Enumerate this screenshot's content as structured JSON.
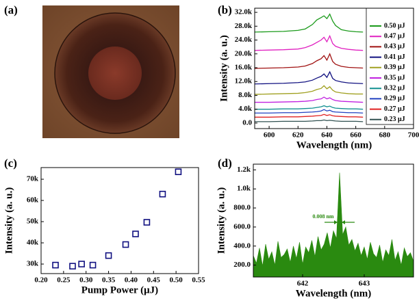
{
  "image_panel": {
    "label": "(a)"
  },
  "chart_data": [
    {
      "type": "line",
      "label": "(b)",
      "xlabel": "Wavelength (nm)",
      "ylabel": "Intensity (a. u.)",
      "x": [
        590,
        600,
        610,
        620,
        625,
        630,
        633,
        636,
        638,
        640,
        642,
        644,
        646,
        650,
        655,
        660,
        665
      ],
      "series": [
        {
          "name": "0.50 μJ",
          "color": "#1a9a1a",
          "values": [
            26300,
            26400,
            26500,
            26800,
            27200,
            28500,
            29800,
            30500,
            31000,
            30200,
            31500,
            29500,
            28200,
            27000,
            26600,
            26400,
            26300
          ]
        },
        {
          "name": "0.47 μJ",
          "color": "#e020c0",
          "values": [
            21000,
            21100,
            21200,
            21400,
            21800,
            22600,
            23300,
            24000,
            24800,
            23500,
            25200,
            23000,
            22200,
            21600,
            21300,
            21100,
            21000
          ]
        },
        {
          "name": "0.43 μJ",
          "color": "#a01010",
          "values": [
            15800,
            15900,
            16000,
            16200,
            16500,
            17200,
            18000,
            18600,
            19500,
            18200,
            20000,
            17800,
            17000,
            16400,
            16100,
            16000,
            15900
          ]
        },
        {
          "name": "0.41 μJ",
          "color": "#101080",
          "values": [
            11300,
            11400,
            11500,
            11700,
            11900,
            12400,
            13000,
            13500,
            14200,
            13200,
            14800,
            12900,
            12300,
            11900,
            11600,
            11500,
            11400
          ]
        },
        {
          "name": "0.39 μJ",
          "color": "#a0a020",
          "values": [
            8300,
            8400,
            8500,
            8600,
            8800,
            9200,
            9700,
            10000,
            10800,
            9900,
            10500,
            9500,
            9000,
            8700,
            8500,
            8400,
            8400
          ]
        },
        {
          "name": "0.35 μJ",
          "color": "#c020e0",
          "values": [
            6000,
            6000,
            6100,
            6200,
            6300,
            6500,
            6800,
            7000,
            7500,
            7000,
            7300,
            6800,
            6500,
            6300,
            6200,
            6100,
            6000
          ]
        },
        {
          "name": "0.32 μJ",
          "color": "#109090",
          "values": [
            4000,
            4000,
            4100,
            4100,
            4200,
            4300,
            4500,
            4700,
            5000,
            4700,
            4900,
            4500,
            4300,
            4200,
            4100,
            4100,
            4000
          ]
        },
        {
          "name": "0.29 μJ",
          "color": "#2040c0",
          "values": [
            2900,
            2900,
            3000,
            3000,
            3100,
            3200,
            3300,
            3500,
            3900,
            3500,
            3700,
            3300,
            3200,
            3100,
            3000,
            3000,
            2900
          ]
        },
        {
          "name": "0.27 μJ",
          "color": "#e02020",
          "values": [
            1700,
            1700,
            1800,
            1800,
            1900,
            2000,
            2100,
            2200,
            2500,
            2200,
            2400,
            2100,
            2000,
            1900,
            1800,
            1800,
            1700
          ]
        },
        {
          "name": "0.23 μJ",
          "color": "#305050",
          "values": [
            400,
            400,
            500,
            500,
            500,
            600,
            700,
            700,
            900,
            700,
            800,
            700,
            600,
            500,
            500,
            500,
            400
          ]
        }
      ],
      "xlim": [
        590,
        700
      ],
      "xticks": [
        600,
        620,
        640,
        660,
        680,
        700
      ],
      "ylim": [
        -1600,
        33200
      ],
      "yticks": [
        {
          "value": 0,
          "label": "0.0"
        },
        {
          "value": 4000,
          "label": "4.0k"
        },
        {
          "value": 8000,
          "label": "8.0k"
        },
        {
          "value": 12000,
          "label": "12.0k"
        },
        {
          "value": 16000,
          "label": "16.0k"
        },
        {
          "value": 20000,
          "label": "20.0k"
        },
        {
          "value": 24000,
          "label": "24.0k"
        },
        {
          "value": 28000,
          "label": "28.0k"
        },
        {
          "value": 32000,
          "label": "32.0k"
        }
      ]
    },
    {
      "type": "scatter",
      "label": "(c)",
      "xlabel": "Pump Power (μJ)",
      "ylabel": "Intensity (a. u.)",
      "color": "#101080",
      "x": [
        0.232,
        0.27,
        0.29,
        0.315,
        0.35,
        0.388,
        0.41,
        0.435,
        0.47,
        0.505
      ],
      "values": [
        29500,
        29000,
        30000,
        29500,
        34000,
        39200,
        44200,
        49700,
        63000,
        73500
      ],
      "xlim": [
        0.2,
        0.55
      ],
      "xticks": [
        {
          "value": 0.2,
          "label": "0.20"
        },
        0.25,
        {
          "value": 0.3,
          "label": "0.30"
        },
        0.35,
        {
          "value": 0.4,
          "label": "0.40"
        },
        0.45,
        {
          "value": 0.5,
          "label": "0.50"
        },
        0.55
      ],
      "ylim": [
        25500,
        75500
      ],
      "yticks": [
        {
          "value": 30000,
          "label": "30k"
        },
        {
          "value": 40000,
          "label": "40k"
        },
        {
          "value": 50000,
          "label": "50k"
        },
        {
          "value": 60000,
          "label": "60k"
        },
        {
          "value": 70000,
          "label": "70k"
        }
      ]
    },
    {
      "type": "area",
      "label": "(d)",
      "xlabel": "Wavelength (nm)",
      "ylabel": "Intensity (a. u.)",
      "color": "#2a8a10",
      "annotation": "0.008 nm",
      "x": [
        641.2,
        641.25,
        641.3,
        641.35,
        641.4,
        641.45,
        641.5,
        641.55,
        641.6,
        641.65,
        641.7,
        641.75,
        641.8,
        641.85,
        641.9,
        641.95,
        642,
        642.05,
        642.1,
        642.15,
        642.2,
        642.25,
        642.3,
        642.35,
        642.4,
        642.45,
        642.5,
        642.55,
        642.6,
        642.65,
        642.7,
        642.75,
        642.8,
        642.85,
        642.9,
        642.95,
        643,
        643.05,
        643.1,
        643.15,
        643.2,
        643.25,
        643.3,
        643.35,
        643.4,
        643.45,
        643.5,
        643.55,
        643.6,
        643.65,
        643.7,
        643.75,
        643.8
      ],
      "values": [
        300,
        220,
        380,
        190,
        420,
        260,
        340,
        200,
        450,
        280,
        310,
        370,
        230,
        400,
        270,
        440,
        210,
        390,
        330,
        460,
        290,
        500,
        360,
        420,
        540,
        380,
        560,
        480,
        1170,
        520,
        600,
        410,
        470,
        350,
        430,
        300,
        390,
        260,
        440,
        320,
        280,
        410,
        230,
        360,
        300,
        470,
        250,
        340,
        200,
        380,
        290,
        330,
        240
      ],
      "xlim": [
        641.2,
        643.8
      ],
      "xticks": [
        642,
        643
      ],
      "ylim": [
        75,
        1260
      ],
      "yticks": [
        {
          "value": 200,
          "label": "200.0"
        },
        {
          "value": 400,
          "label": "400.0"
        },
        {
          "value": 600,
          "label": "600.0"
        },
        {
          "value": 800,
          "label": "800.0"
        },
        {
          "value": 1000,
          "label": "1.0k"
        },
        {
          "value": 1200,
          "label": "1.2k"
        }
      ]
    }
  ]
}
